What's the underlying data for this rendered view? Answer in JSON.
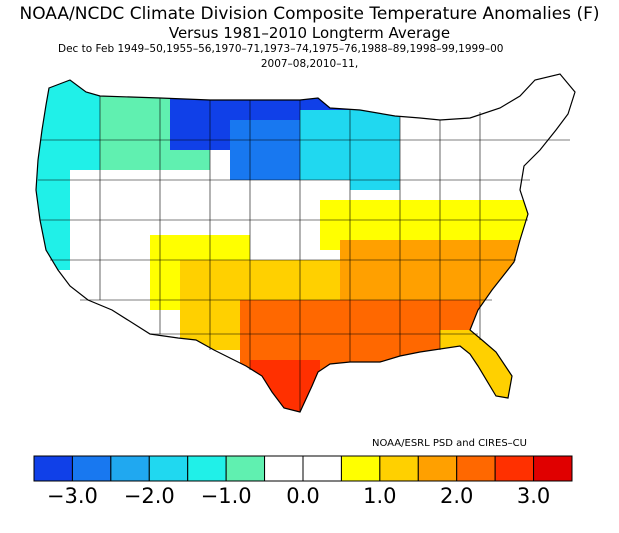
{
  "title": {
    "line1": "NOAA/NCDC Climate Division Composite Temperature Anomalies (F)",
    "line2": "Versus 1981–2010 Longterm Average",
    "line3": "Dec to Feb  1949–50,1955–56,1970–71,1973–74,1975–76,1988–89,1998–99,1999–00",
    "line4": "2007–08,2010–11,"
  },
  "credit": "NOAA/ESRL PSD and CIRES–CU",
  "colorbar": {
    "colors": [
      "#1040e8",
      "#1878f0",
      "#20a8f0",
      "#20d8f0",
      "#20f0e8",
      "#60f0b0",
      "#ffffff",
      "#ffffff",
      "#ffff00",
      "#ffd000",
      "#ffa000",
      "#ff6800",
      "#ff3000",
      "#e00000"
    ],
    "ticks": [
      "−3.0",
      "−2.0",
      "−1.0",
      "0.0",
      "1.0",
      "2.0",
      "3.0"
    ]
  },
  "map": {
    "regions": [
      {
        "name": "pacific-northwest",
        "color": "#20f0e8"
      },
      {
        "name": "northern-rockies",
        "color": "#60f0b0"
      },
      {
        "name": "northern-plains",
        "color": "#1040e8"
      },
      {
        "name": "upper-midwest",
        "color": "#1878f0"
      },
      {
        "name": "great-lakes",
        "color": "#20d8f0"
      },
      {
        "name": "great-basin",
        "color": "#ffffff"
      },
      {
        "name": "central-plains",
        "color": "#ffffff"
      },
      {
        "name": "ohio-valley",
        "color": "#ffff00"
      },
      {
        "name": "southwest",
        "color": "#ffff00"
      },
      {
        "name": "southern-plains",
        "color": "#ffd000"
      },
      {
        "name": "southeast",
        "color": "#ffa000"
      },
      {
        "name": "gulf-coast",
        "color": "#ff6800"
      },
      {
        "name": "south-texas",
        "color": "#ff3000"
      },
      {
        "name": "northeast",
        "color": "#ffffff"
      },
      {
        "name": "florida",
        "color": "#ffd000"
      }
    ]
  }
}
